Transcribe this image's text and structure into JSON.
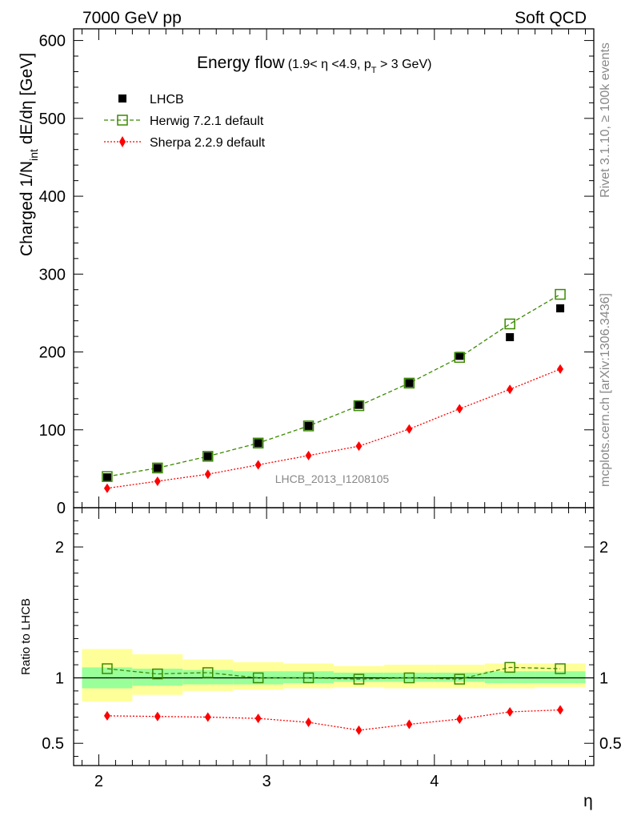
{
  "header": {
    "left": "7000 GeV pp",
    "right": "Soft QCD"
  },
  "side_labels": {
    "rivet": "Rivet 3.1.10, ≥ 100k events",
    "mcplots": "mcplots.cern.ch [arXiv:1306.3436]"
  },
  "analysis_tag": "LHCB_2013_I1208105",
  "colors": {
    "lhcb": "#000000",
    "herwig": "#3a8a00",
    "sherpa": "#ff0000",
    "band_inner": "#99ff99",
    "band_outer": "#ffff99"
  },
  "chart_data": [
    {
      "type": "scatter",
      "title_main": "Energy flow",
      "title_sub": "(1.9< η <4.9, p",
      "title_sub_subscript": "T",
      "title_sub_tail": " > 3 GeV)",
      "ylabel_main": "Charged 1/N",
      "ylabel_subscript": "int",
      "ylabel_tail": " dE/dη [GeV]",
      "xlabel": "",
      "ylim": [
        0,
        615
      ],
      "xlim": [
        1.85,
        4.95
      ],
      "yticks": [
        "0",
        "100",
        "200",
        "300",
        "400",
        "500",
        "600"
      ],
      "legend_position": "top-left",
      "x": [
        2.05,
        2.35,
        2.65,
        2.95,
        3.25,
        3.55,
        3.85,
        4.15,
        4.45,
        4.75
      ],
      "series": [
        {
          "name": "LHCB",
          "marker": "filled-square",
          "values": [
            39,
            51,
            66,
            83,
            105,
            132,
            160,
            195,
            219,
            256
          ]
        },
        {
          "name": "Herwig 7.2.1 default",
          "marker": "open-square",
          "values": [
            40,
            51,
            66,
            83,
            105,
            131,
            160,
            193,
            236,
            274
          ]
        },
        {
          "name": "Sherpa 2.2.9 default",
          "marker": "diamond",
          "values": [
            25,
            34,
            43,
            55,
            67,
            79,
            101,
            127,
            152,
            178
          ]
        }
      ]
    },
    {
      "type": "scatter",
      "ylabel": "Ratio to LHCB",
      "xlabel": "η",
      "ylim": [
        0.33,
        2.3
      ],
      "xlim": [
        1.85,
        4.95
      ],
      "yticks": [
        "0.5",
        "1",
        "2"
      ],
      "xticks": [
        "2",
        "3",
        "4"
      ],
      "bands": {
        "edges": [
          1.9,
          2.2,
          2.5,
          2.8,
          3.1,
          3.4,
          3.7,
          4.0,
          4.3,
          4.6,
          4.9
        ],
        "inner_lo": [
          0.92,
          0.94,
          0.95,
          0.95,
          0.96,
          0.97,
          0.97,
          0.97,
          0.96,
          0.96
        ],
        "inner_hi": [
          1.08,
          1.07,
          1.06,
          1.05,
          1.05,
          1.04,
          1.04,
          1.04,
          1.05,
          1.05
        ],
        "outer_lo": [
          0.82,
          0.87,
          0.9,
          0.91,
          0.92,
          0.93,
          0.92,
          0.92,
          0.92,
          0.93
        ],
        "outer_hi": [
          1.22,
          1.18,
          1.14,
          1.12,
          1.11,
          1.09,
          1.1,
          1.1,
          1.11,
          1.11
        ]
      },
      "series": [
        {
          "name": "Herwig 7.2.1 default",
          "values": [
            1.07,
            1.03,
            1.04,
            1.0,
            1.0,
            0.99,
            1.0,
            0.99,
            1.08,
            1.07
          ]
        },
        {
          "name": "Sherpa 2.2.9 default",
          "values": [
            0.71,
            0.705,
            0.7,
            0.69,
            0.66,
            0.6,
            0.645,
            0.685,
            0.74,
            0.755
          ]
        }
      ]
    }
  ]
}
